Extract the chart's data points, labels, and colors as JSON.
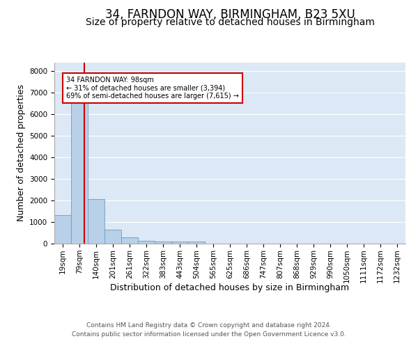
{
  "title": "34, FARNDON WAY, BIRMINGHAM, B23 5XU",
  "subtitle": "Size of property relative to detached houses in Birmingham",
  "xlabel": "Distribution of detached houses by size in Birmingham",
  "ylabel": "Number of detached properties",
  "footer_line1": "Contains HM Land Registry data © Crown copyright and database right 2024.",
  "footer_line2": "Contains public sector information licensed under the Open Government Licence v3.0.",
  "bin_labels": [
    "19sqm",
    "79sqm",
    "140sqm",
    "201sqm",
    "261sqm",
    "322sqm",
    "383sqm",
    "443sqm",
    "504sqm",
    "565sqm",
    "625sqm",
    "686sqm",
    "747sqm",
    "807sqm",
    "868sqm",
    "929sqm",
    "990sqm",
    "1050sqm",
    "1111sqm",
    "1172sqm",
    "1232sqm"
  ],
  "bar_heights": [
    1310,
    6600,
    2070,
    650,
    280,
    140,
    95,
    100,
    90,
    0,
    0,
    0,
    0,
    0,
    0,
    0,
    0,
    0,
    0,
    0,
    0
  ],
  "bar_color": "#b8d0e8",
  "bar_edge_color": "#6a9ec0",
  "vline_x_index": 1.28,
  "vline_color": "#cc0000",
  "annotation_text": "34 FARNDON WAY: 98sqm\n← 31% of detached houses are smaller (3,394)\n69% of semi-detached houses are larger (7,615) →",
  "annotation_box_color": "#cc0000",
  "ylim": [
    0,
    8400
  ],
  "yticks": [
    0,
    1000,
    2000,
    3000,
    4000,
    5000,
    6000,
    7000,
    8000
  ],
  "background_color": "#dce8f5",
  "grid_color": "#ffffff",
  "title_fontsize": 12,
  "subtitle_fontsize": 10,
  "axis_label_fontsize": 9,
  "tick_fontsize": 7.5,
  "footer_fontsize": 6.5
}
